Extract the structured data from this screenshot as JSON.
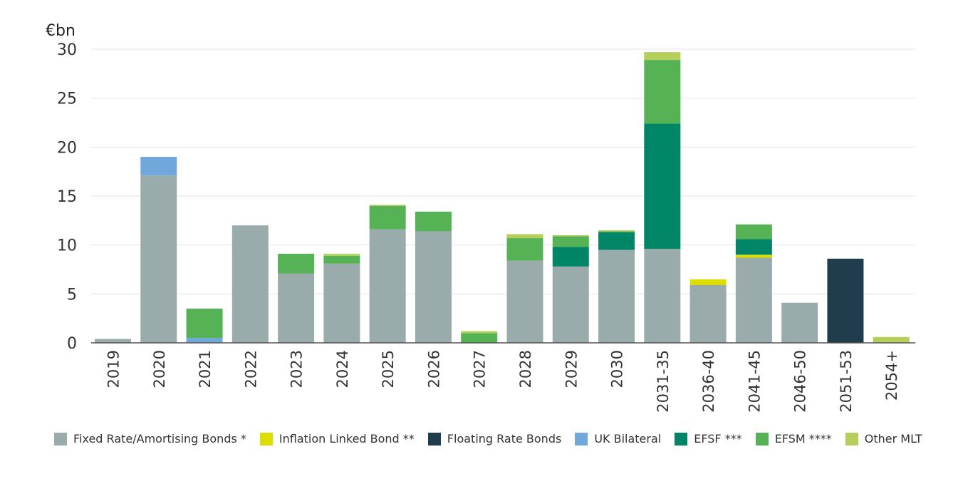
{
  "chart_data": {
    "type": "bar",
    "stacked": true,
    "title": "",
    "ylabel": "€bn",
    "xlabel": "",
    "ylim": [
      0,
      30
    ],
    "yticks": [
      0,
      5,
      10,
      15,
      20,
      25,
      30
    ],
    "grid": true,
    "legend_position": "bottom",
    "categories": [
      "2019",
      "2020",
      "2021",
      "2022",
      "2023",
      "2024",
      "2025",
      "2026",
      "2027",
      "2028",
      "2029",
      "2030",
      "2031-35",
      "2036-40",
      "2041-45",
      "2046-50",
      "2051-53",
      "2054+"
    ],
    "series": [
      {
        "name": "Fixed Rate/Amortising Bonds *",
        "color": "#9aabab",
        "values": [
          0.4,
          17.1,
          0,
          12.0,
          7.1,
          8.1,
          11.6,
          11.4,
          0,
          8.4,
          7.8,
          9.5,
          9.6,
          5.9,
          8.7,
          4.1,
          0,
          0
        ]
      },
      {
        "name": "Inflation Linked Bond **",
        "color": "#dddd00",
        "values": [
          0,
          0,
          0,
          0,
          0,
          0,
          0,
          0,
          0,
          0,
          0,
          0,
          0,
          0.6,
          0.3,
          0,
          0,
          0
        ]
      },
      {
        "name": "Floating Rate Bonds",
        "color": "#1f3d4d",
        "values": [
          0,
          0,
          0,
          0,
          0,
          0,
          0,
          0,
          0,
          0,
          0,
          0,
          0,
          0,
          0,
          0,
          8.6,
          0
        ]
      },
      {
        "name": "UK Bilateral",
        "color": "#72a7dc",
        "values": [
          0,
          1.9,
          0.5,
          0,
          0,
          0,
          0,
          0,
          0,
          0,
          0,
          0,
          0,
          0,
          0,
          0,
          0,
          0
        ]
      },
      {
        "name": "EFSF ***",
        "color": "#008566",
        "values": [
          0,
          0,
          0,
          0,
          0,
          0,
          0,
          0,
          0,
          0,
          2.0,
          1.8,
          12.8,
          0,
          1.6,
          0,
          0,
          0
        ]
      },
      {
        "name": "EFSM ****",
        "color": "#55b255",
        "values": [
          0,
          0,
          3.0,
          0,
          2.0,
          0.8,
          2.4,
          2.0,
          1.0,
          2.3,
          1.1,
          0.1,
          6.5,
          0,
          1.5,
          0,
          0,
          0
        ]
      },
      {
        "name": "Other MLT",
        "color": "#b5cf5a",
        "values": [
          0,
          0,
          0,
          0,
          0,
          0.2,
          0.1,
          0,
          0.2,
          0.4,
          0.1,
          0.1,
          0.8,
          0,
          0,
          0,
          0,
          0.6
        ]
      }
    ]
  }
}
